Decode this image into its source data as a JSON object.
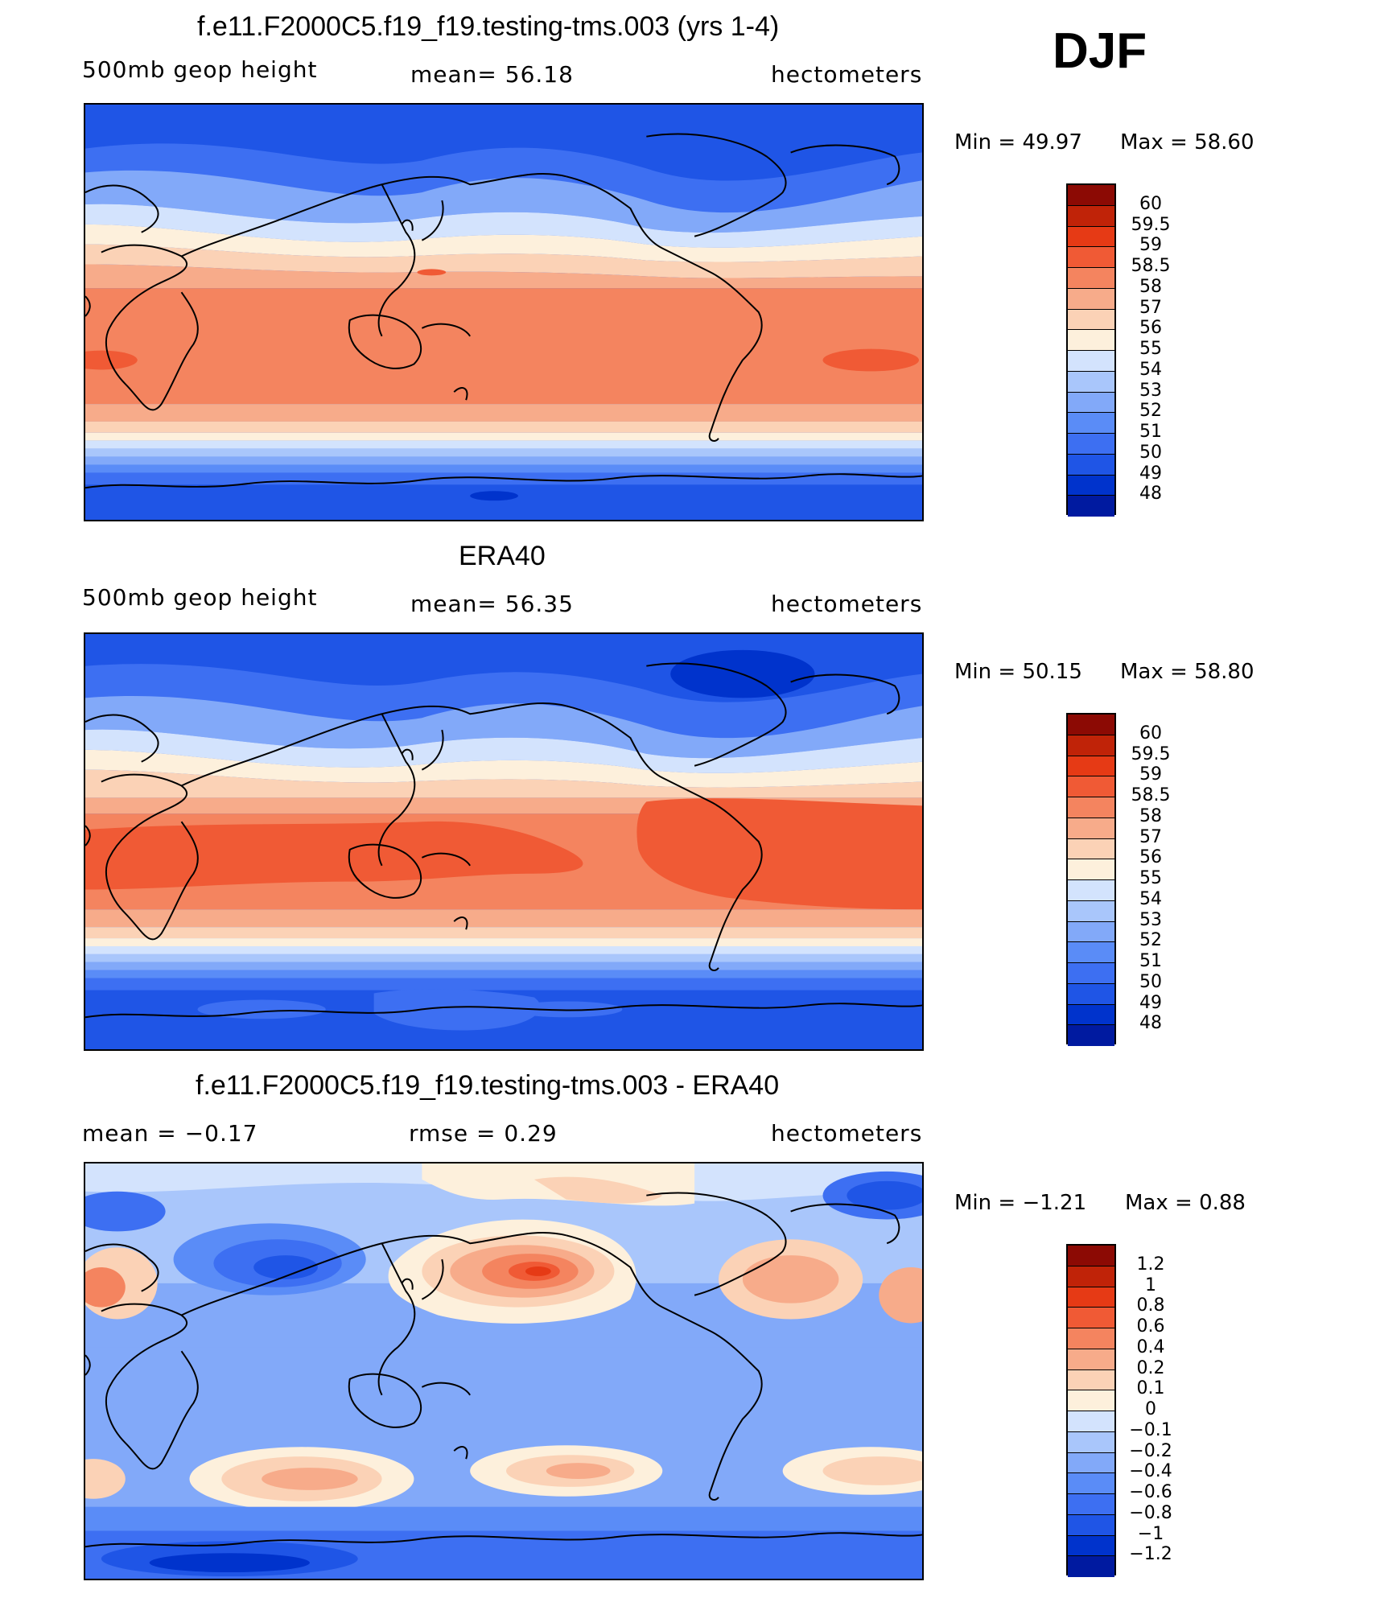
{
  "season": "DJF",
  "palette": {
    "ts": [
      "#00007f",
      "#001aa0",
      "#0033cc",
      "#1f55e6",
      "#3d6ff2",
      "#5a8cf7",
      "#82a9f9",
      "#a9c6fb",
      "#d3e3fd",
      "#fdf0dc",
      "#fbd2b6",
      "#f7ab8a",
      "#f4845f",
      "#f05a35",
      "#e63a15",
      "#c02308",
      "#8c0a04"
    ],
    "diff": [
      "#00007f",
      "#001aa0",
      "#0033cc",
      "#1f55e6",
      "#3d6ff2",
      "#5a8cf7",
      "#82a9f9",
      "#a9c6fb",
      "#d3e3fd",
      "#fdf0dc",
      "#fbd2b6",
      "#f7ab8a",
      "#f4845f",
      "#f05a35",
      "#e63a15",
      "#c02308",
      "#8c0a04"
    ]
  },
  "panels": [
    {
      "id": "model",
      "title": "f.e11.F2000C5.f19_f19.testing-tms.003 (yrs 1-4)",
      "left_label": "500mb  geop  height",
      "center_label": "mean=   56.18",
      "right_label": "hectometers",
      "min_text": "Min  =     49.97",
      "max_text": "Max  =     58.60",
      "colorbar_labels": [
        "60",
        "59.5",
        "59",
        "58.5",
        "58",
        "57",
        "56",
        "55",
        "54",
        "53",
        "52",
        "51",
        "50",
        "49",
        "48"
      ]
    },
    {
      "id": "obs",
      "title": "ERA40",
      "left_label": "500mb  geop  height",
      "center_label": "mean=   56.35",
      "right_label": "hectometers",
      "min_text": "Min  =     50.15",
      "max_text": "Max  =     58.80",
      "colorbar_labels": [
        "60",
        "59.5",
        "59",
        "58.5",
        "58",
        "57",
        "56",
        "55",
        "54",
        "53",
        "52",
        "51",
        "50",
        "49",
        "48"
      ]
    },
    {
      "id": "diff",
      "title": "f.e11.F2000C5.f19_f19.testing-tms.003 - ERA40",
      "left_label": "mean  =    −0.17",
      "center_label": "rmse  =     0.29",
      "right_label": "hectometers",
      "min_text": "Min  =    −1.21",
      "max_text": "Max  =      0.88",
      "colorbar_labels": [
        "1.2",
        "1",
        "0.8",
        "0.6",
        "0.4",
        "0.2",
        "0.1",
        "0",
        "−0.1",
        "−0.2",
        "−0.4",
        "−0.6",
        "−0.8",
        "−1",
        "−1.2"
      ]
    }
  ]
}
